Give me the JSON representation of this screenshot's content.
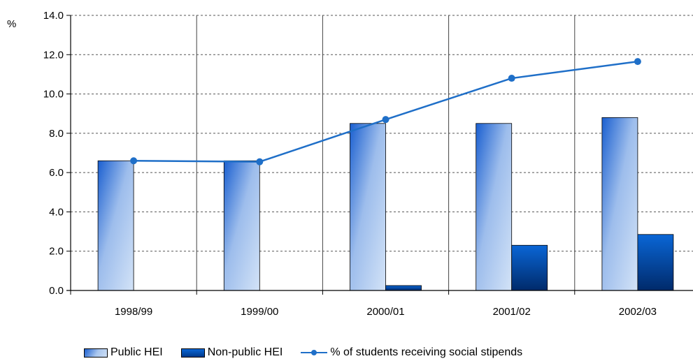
{
  "chart_data": {
    "type": "bar",
    "title": "",
    "xlabel": "",
    "ylabel": "%",
    "ylim": [
      0,
      14
    ],
    "yticks": [
      "0.0",
      "2.0",
      "4.0",
      "6.0",
      "8.0",
      "10.0",
      "12.0",
      "14.0"
    ],
    "categories": [
      "1998/99",
      "1999/00",
      "2000/01",
      "2001/02",
      "2002/03"
    ],
    "series": [
      {
        "name": "Public HEI",
        "type": "bar",
        "values": [
          6.6,
          6.6,
          8.5,
          8.5,
          8.8
        ]
      },
      {
        "name": "Non-public HEI",
        "type": "bar",
        "values": [
          0,
          0,
          0.25,
          2.3,
          2.85
        ]
      },
      {
        "name": "% of students receiving social stipends",
        "type": "line",
        "values": [
          6.6,
          6.55,
          8.7,
          10.8,
          11.65
        ]
      }
    ],
    "grid": true,
    "legend_position": "bottom",
    "colors": {
      "public_dark": "#1a5fd0",
      "public_light": "#cfe0f6",
      "nonpublic_top": "#0a66d6",
      "nonpublic_bottom": "#002a6a",
      "line": "#1f6fc8",
      "grid": "#555555"
    }
  }
}
